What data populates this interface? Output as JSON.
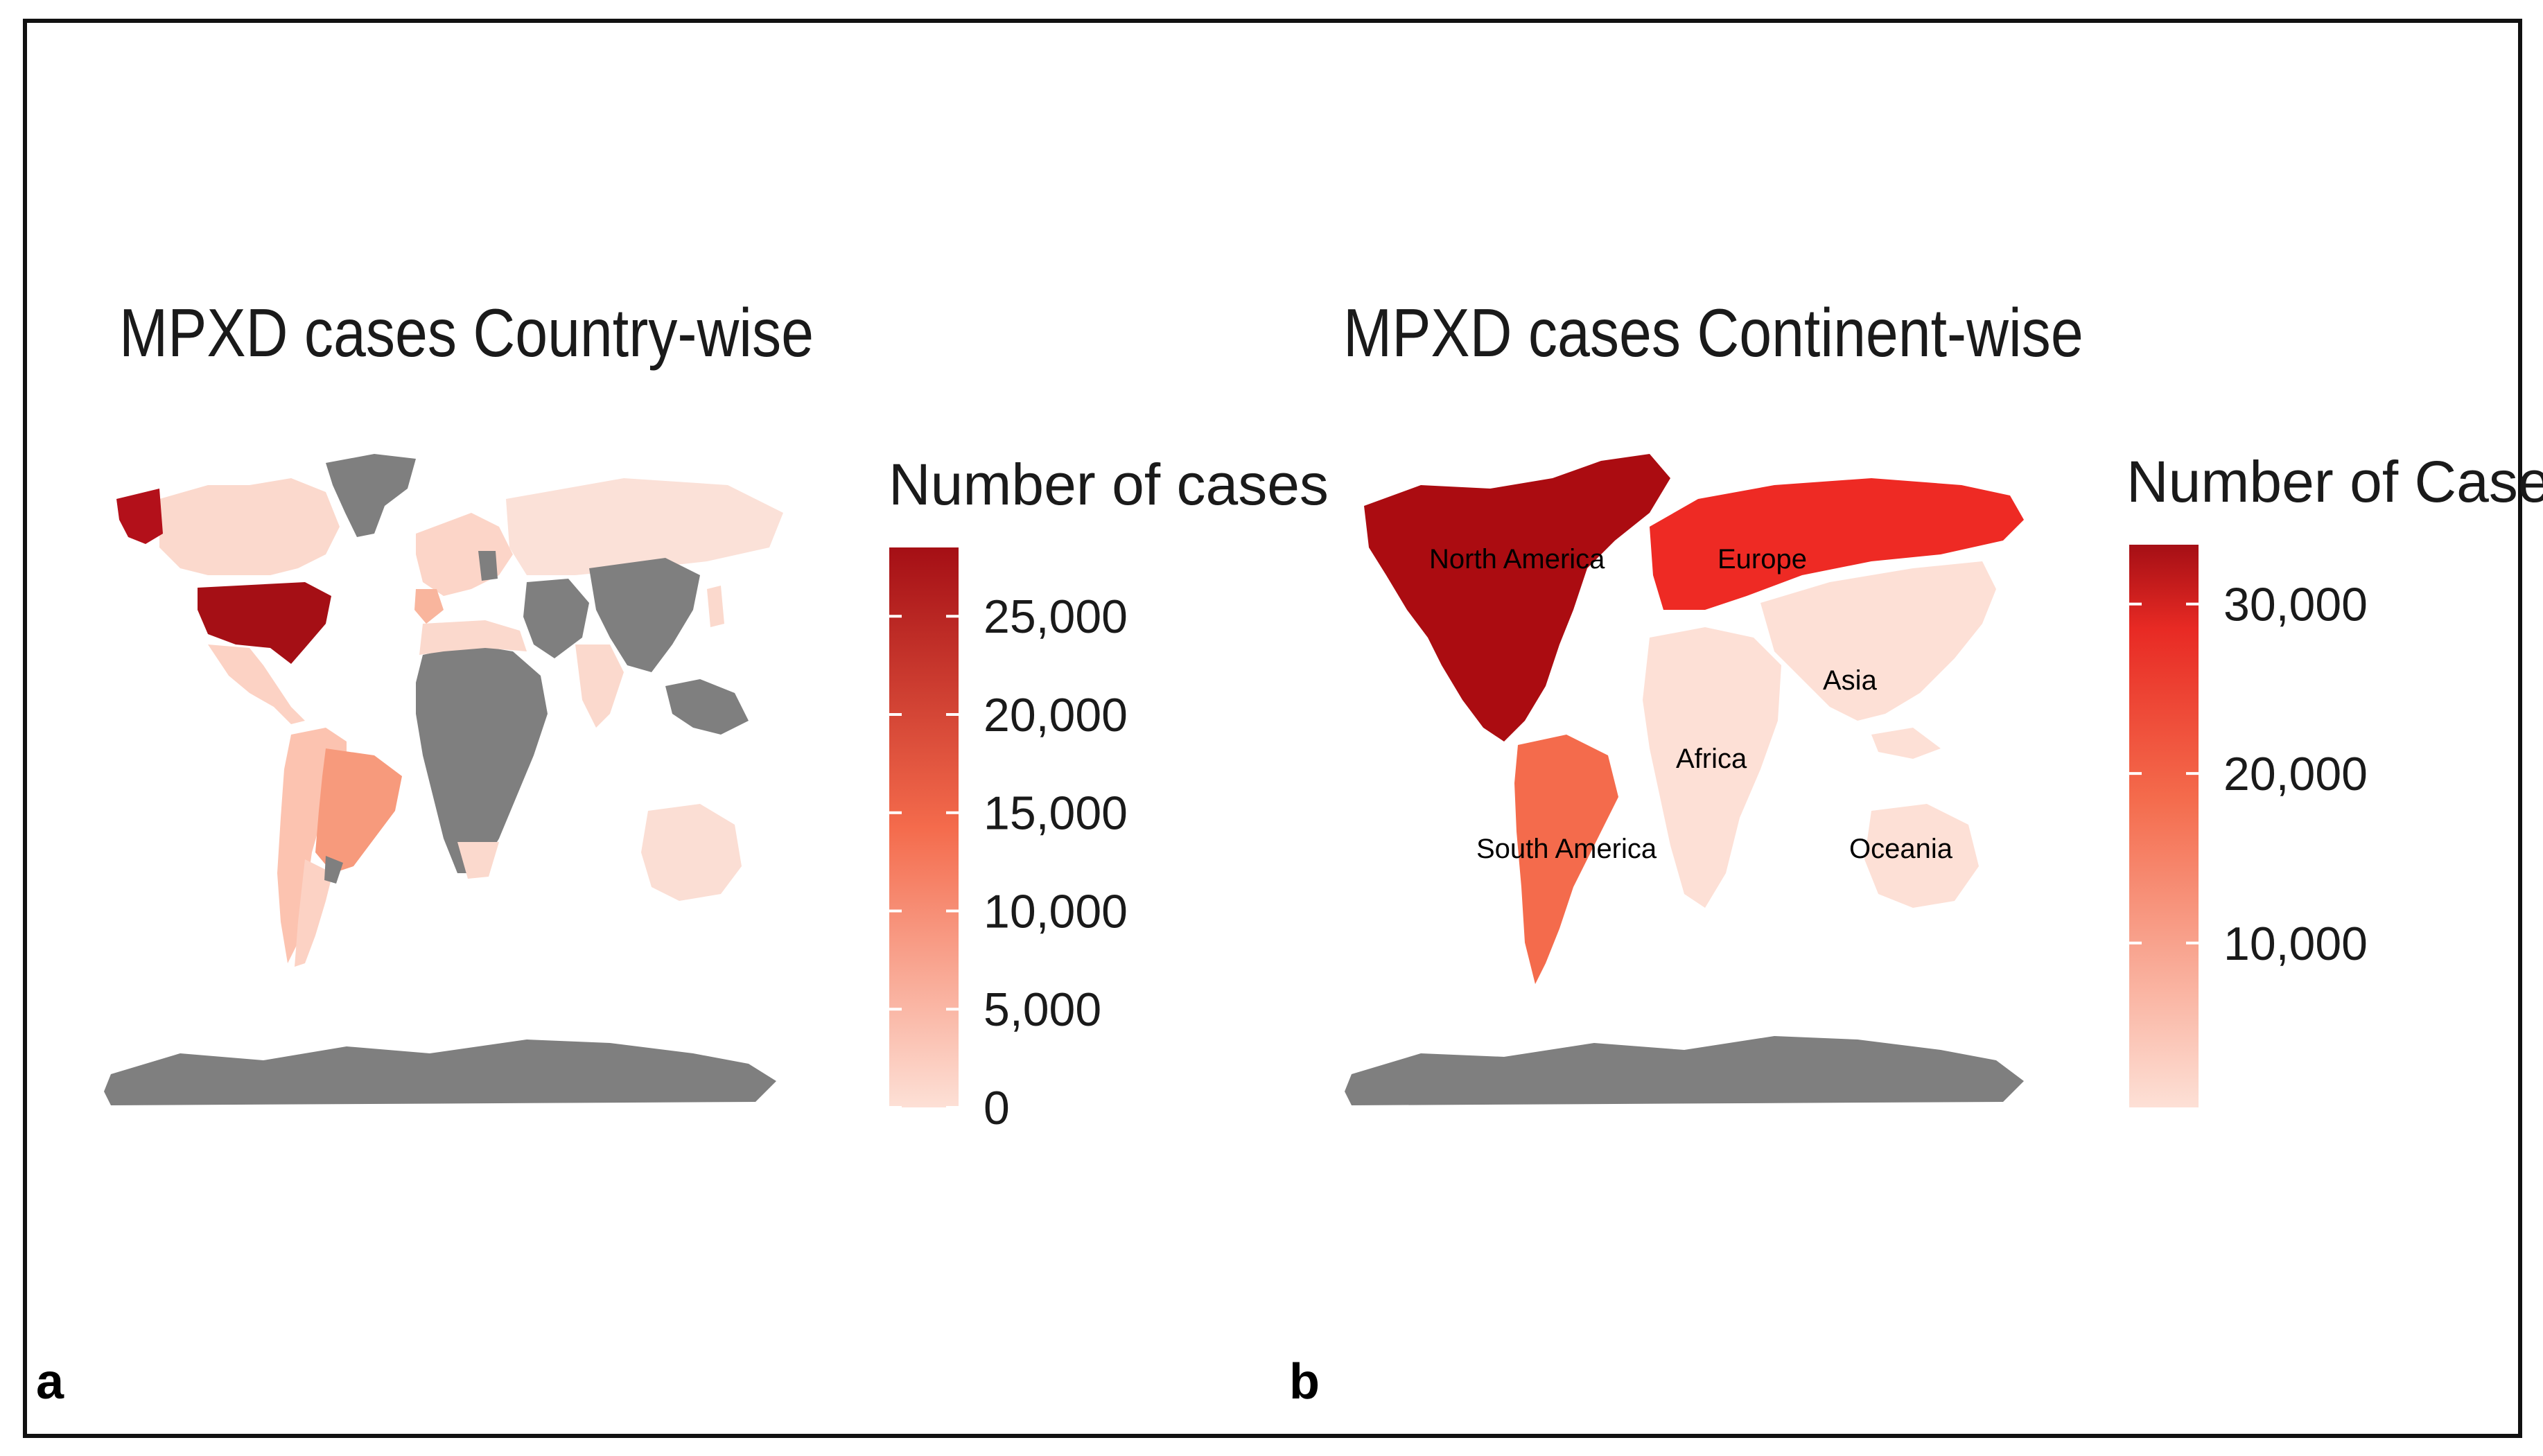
{
  "panels": [
    {
      "letter": "a",
      "title": "MPXD cases Country-wise",
      "legend": {
        "title": "Number of cases",
        "ticks": [
          "25,000",
          "20,000",
          "15,000",
          "10,000",
          "5,000",
          "0"
        ],
        "tick_values": [
          25000,
          20000,
          15000,
          10000,
          5000,
          0
        ],
        "range": [
          0,
          28500
        ],
        "low_color": "#fde0d6",
        "high_color": "#a50f15"
      },
      "no_data_color": "#7f7f7f"
    },
    {
      "letter": "b",
      "title": "MPXD cases Continent-wise",
      "legend": {
        "title": "Number of Cases",
        "ticks": [
          "30,000",
          "20,000",
          "10,000"
        ],
        "tick_values": [
          30000,
          20000,
          10000
        ],
        "range": [
          300,
          33500
        ],
        "low_color": "#fde0d6",
        "high_color": "#a50f15"
      },
      "continents": [
        {
          "name": "North America",
          "color": "#ab0c11"
        },
        {
          "name": "Europe",
          "color": "#ee2a24"
        },
        {
          "name": "Asia",
          "color": "#fde0d6"
        },
        {
          "name": "Africa",
          "color": "#fde0d6"
        },
        {
          "name": "South America",
          "color": "#f46b4c"
        },
        {
          "name": "Oceania",
          "color": "#fde0d6"
        }
      ],
      "no_data_color": "#7f7f7f"
    }
  ]
}
